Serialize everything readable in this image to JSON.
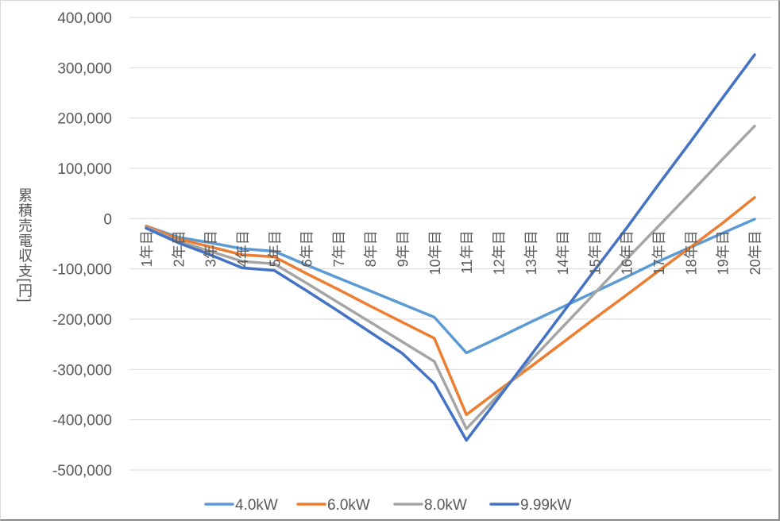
{
  "chart_data": {
    "type": "line",
    "title": "",
    "xlabel": "",
    "ylabel": "累積売電収支[円]",
    "ylim": [
      -500000,
      400000
    ],
    "yticks": [
      400000,
      300000,
      200000,
      100000,
      0,
      -100000,
      -200000,
      -300000,
      -400000,
      -500000
    ],
    "ytick_labels": [
      "400,000",
      "300,000",
      "200,000",
      "100,000",
      "0",
      "-100,000",
      "-200,000",
      "-300,000",
      "-400,000",
      "-500,000"
    ],
    "grid": true,
    "legend_position": "bottom",
    "categories": [
      "1年目",
      "2年目",
      "3年目",
      "4年目",
      "5年目",
      "6年目",
      "7年目",
      "8年目",
      "9年目",
      "10年目",
      "11年目",
      "12年目",
      "13年目",
      "14年目",
      "15年目",
      "16年目",
      "17年目",
      "18年目",
      "19年目",
      "20年目"
    ],
    "series": [
      {
        "name": "4.0kW",
        "color": "#5b9bd5",
        "values": [
          -15000,
          -37000,
          -48000,
          -60000,
          -65000,
          -92000,
          -118000,
          -144000,
          -170000,
          -196000,
          -267000,
          -237000,
          -206000,
          -176000,
          -146000,
          -116000,
          -85000,
          -57000,
          -29000,
          -1000
        ]
      },
      {
        "name": "6.0kW",
        "color": "#ed7d31",
        "values": [
          -15000,
          -40000,
          -56000,
          -72000,
          -76000,
          -109000,
          -141000,
          -174000,
          -206000,
          -238000,
          -390000,
          -342000,
          -295000,
          -247000,
          -199000,
          -152000,
          -104000,
          -57000,
          -9000,
          42000
        ]
      },
      {
        "name": "8.0kW",
        "color": "#a5a5a5",
        "values": [
          -17000,
          -45000,
          -65000,
          -85000,
          -90000,
          -128000,
          -167000,
          -206000,
          -245000,
          -284000,
          -418000,
          -351000,
          -283000,
          -216000,
          -149000,
          -81000,
          -15000,
          51000,
          118000,
          184000
        ]
      },
      {
        "name": "9.99kW",
        "color": "#4472c4",
        "values": [
          -19000,
          -48000,
          -72000,
          -98000,
          -103000,
          -143000,
          -184000,
          -226000,
          -268000,
          -328000,
          -441000,
          -357000,
          -273000,
          -188000,
          -103000,
          -19000,
          68000,
          153000,
          240000,
          326000
        ]
      }
    ]
  }
}
